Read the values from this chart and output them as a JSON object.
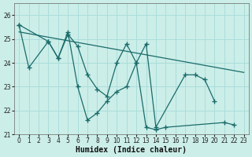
{
  "xlabel": "Humidex (Indice chaleur)",
  "bg_color": "#cceee8",
  "grid_color": "#aaddda",
  "line_color": "#1a6b6b",
  "marker": "+",
  "xlim": [
    -0.5,
    23.5
  ],
  "ylim": [
    21.0,
    26.5
  ],
  "yticks": [
    21,
    22,
    23,
    24,
    25,
    26
  ],
  "xticks": [
    0,
    1,
    2,
    3,
    4,
    5,
    6,
    7,
    8,
    9,
    10,
    11,
    12,
    13,
    14,
    15,
    16,
    17,
    18,
    19,
    20,
    21,
    22,
    23
  ],
  "series1_x": [
    0,
    1,
    3,
    4,
    5,
    6,
    7,
    8,
    9,
    10,
    11,
    12,
    13,
    14,
    15,
    21,
    22
  ],
  "series1_y": [
    25.6,
    23.8,
    24.9,
    24.2,
    25.3,
    23.0,
    21.6,
    21.9,
    22.4,
    22.8,
    23.0,
    24.0,
    21.3,
    21.2,
    21.3,
    21.5,
    21.4
  ],
  "series2_x": [
    0,
    3,
    4,
    5,
    6,
    7,
    8,
    9,
    10,
    11,
    12,
    13,
    14,
    17,
    18,
    19,
    20
  ],
  "series2_y": [
    25.6,
    24.9,
    24.2,
    25.2,
    24.7,
    23.5,
    22.9,
    22.6,
    24.0,
    24.8,
    24.0,
    24.8,
    21.3,
    23.5,
    23.5,
    23.3,
    22.4
  ],
  "trend_x": [
    0,
    23
  ],
  "trend_y": [
    25.3,
    23.6
  ]
}
